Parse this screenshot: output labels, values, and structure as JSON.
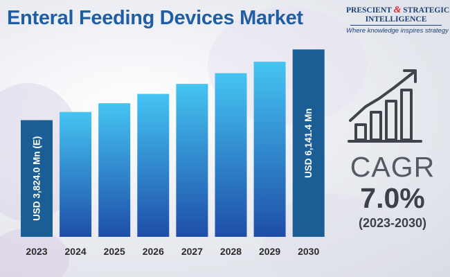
{
  "title": "Enteral Feeding Devices Market",
  "logo": {
    "line1_a": "PRESCIENT",
    "line1_amp": "&",
    "line1_b": "STRATEGIC",
    "line2": "INTELLIGENCE",
    "tagline": "Where knowledge inspires strategy"
  },
  "cagr": {
    "label": "CAGR",
    "value": "7.0%",
    "period": "(2023-2030)"
  },
  "icons": {
    "trend": "bar-growth-arrow-icon"
  },
  "colors": {
    "title": "#1f5ea3",
    "bar_gradient_top": "#45c4f2",
    "bar_gradient_bottom": "#1e4ea8",
    "highlight_bar": "#1b5e96",
    "year_label": "#2b2b2b"
  },
  "chart_data": {
    "type": "bar",
    "title": "Enteral Feeding Devices Market",
    "categories": [
      "2023",
      "2024",
      "2025",
      "2026",
      "2027",
      "2028",
      "2029",
      "2030"
    ],
    "series": [
      {
        "values": [
          3824.0,
          4092,
          4378,
          4684,
          5012,
          5363,
          5739,
          6141.4
        ]
      }
    ],
    "data_labels": [
      {
        "category": "2023",
        "text": "USD 3,824.0 Mn (E)"
      },
      {
        "category": "2030",
        "text": "USD 6,141.4 Mn"
      }
    ],
    "highlighted_categories": [
      "2023",
      "2030"
    ],
    "unit": "USD Mn",
    "ylim": [
      0,
      6400
    ],
    "grid": false,
    "legend": "none",
    "yaxis_visible": false
  }
}
